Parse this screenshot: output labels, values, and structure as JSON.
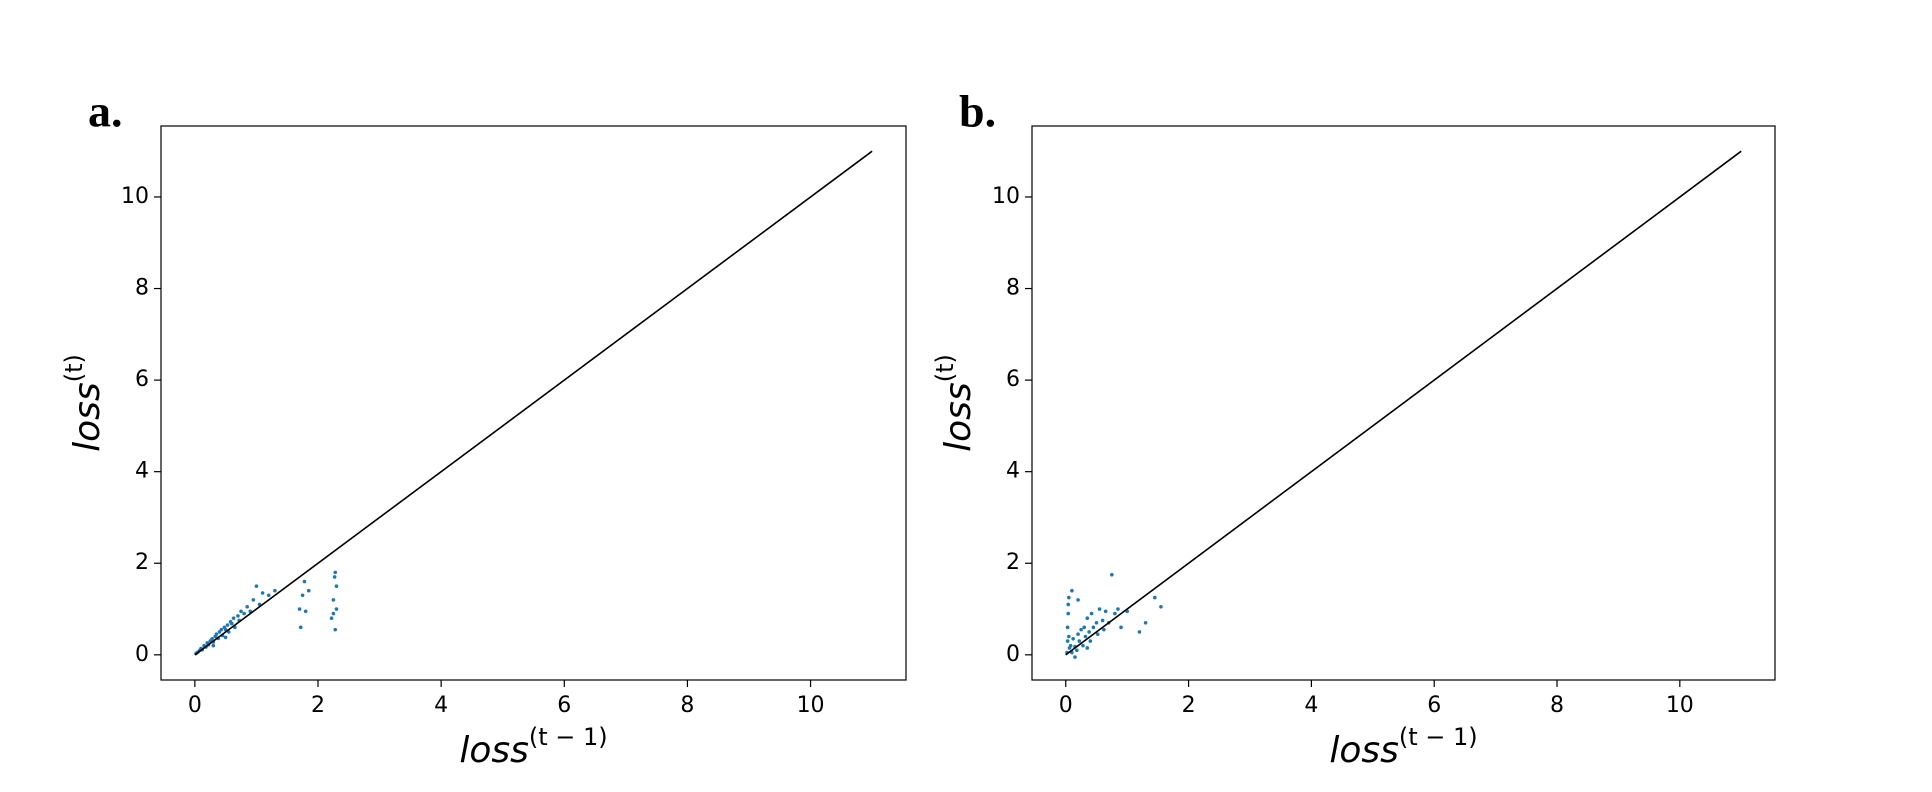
{
  "chart_data": [
    {
      "type": "scatter",
      "panel_label": "a.",
      "xlabel": {
        "base": "loss",
        "sup": "(t − 1)"
      },
      "ylabel": {
        "base": "loss",
        "sup": "(t)"
      },
      "xlim": [
        -0.55,
        11.55
      ],
      "ylim": [
        -0.55,
        11.55
      ],
      "xticks": [
        0,
        2,
        4,
        6,
        8,
        10
      ],
      "yticks": [
        0,
        2,
        4,
        6,
        8,
        10
      ],
      "series": [
        {
          "type": "scatter",
          "color": "#1f77b4",
          "x": [
            0.02,
            0.05,
            0.08,
            0.1,
            0.12,
            0.15,
            0.18,
            0.2,
            0.22,
            0.25,
            0.28,
            0.3,
            0.33,
            0.35,
            0.38,
            0.4,
            0.43,
            0.45,
            0.48,
            0.5,
            0.53,
            0.55,
            0.58,
            0.6,
            0.63,
            0.65,
            0.7,
            0.72,
            0.75,
            0.8,
            0.85,
            0.9,
            0.95,
            1.0,
            1.05,
            1.1,
            1.2,
            1.3,
            0.5,
            0.3,
            1.7,
            1.72,
            1.75,
            1.8,
            1.78,
            1.85,
            2.22,
            2.25,
            2.27,
            2.28,
            2.3,
            2.3,
            2.25,
            2.28
          ],
          "values": [
            0.03,
            0.06,
            0.1,
            0.14,
            0.11,
            0.2,
            0.17,
            0.26,
            0.22,
            0.3,
            0.35,
            0.28,
            0.4,
            0.45,
            0.36,
            0.5,
            0.55,
            0.42,
            0.6,
            0.55,
            0.65,
            0.5,
            0.72,
            0.68,
            0.8,
            0.6,
            0.85,
            0.75,
            0.95,
            0.9,
            1.05,
            0.95,
            1.2,
            1.5,
            1.1,
            1.35,
            1.3,
            1.4,
            0.38,
            0.2,
            1.0,
            0.6,
            1.3,
            0.95,
            1.6,
            1.4,
            0.8,
            1.2,
            1.7,
            0.55,
            1.0,
            1.5,
            0.9,
            1.8
          ]
        },
        {
          "type": "line",
          "color": "#000000",
          "x": [
            0,
            11
          ],
          "values": [
            0,
            11
          ]
        }
      ]
    },
    {
      "type": "scatter",
      "panel_label": "b.",
      "xlabel": {
        "base": "loss",
        "sup": "(t − 1)"
      },
      "ylabel": {
        "base": "loss",
        "sup": "(t)"
      },
      "xlim": [
        -0.55,
        11.55
      ],
      "ylim": [
        -0.55,
        11.55
      ],
      "xticks": [
        0,
        2,
        4,
        6,
        8,
        10
      ],
      "yticks": [
        0,
        2,
        4,
        6,
        8,
        10
      ],
      "series": [
        {
          "type": "scatter",
          "color": "#1f77b4",
          "x": [
            0.02,
            0.03,
            0.03,
            0.04,
            0.04,
            0.05,
            0.05,
            0.06,
            0.08,
            0.1,
            0.12,
            0.15,
            0.18,
            0.2,
            0.22,
            0.25,
            0.28,
            0.3,
            0.32,
            0.35,
            0.38,
            0.4,
            0.42,
            0.45,
            0.5,
            0.52,
            0.55,
            0.6,
            0.62,
            0.65,
            0.7,
            0.75,
            0.8,
            0.85,
            0.9,
            1.0,
            1.2,
            1.3,
            1.45,
            1.55,
            0.1,
            0.2,
            0.15,
            0.35
          ],
          "values": [
            0.05,
            0.3,
            0.6,
            0.9,
            1.1,
            1.25,
            0.4,
            0.15,
            0.2,
            0.05,
            0.35,
            0.18,
            0.1,
            0.45,
            0.3,
            0.55,
            0.2,
            0.6,
            0.4,
            0.8,
            0.5,
            0.3,
            0.9,
            0.6,
            0.7,
            0.45,
            1.0,
            0.75,
            0.55,
            0.95,
            0.7,
            1.75,
            0.9,
            1.0,
            0.6,
            0.95,
            0.5,
            0.7,
            1.25,
            1.05,
            1.4,
            1.2,
            -0.05,
            0.15
          ]
        },
        {
          "type": "line",
          "color": "#000000",
          "x": [
            0,
            11
          ],
          "values": [
            0,
            11
          ]
        }
      ]
    }
  ]
}
